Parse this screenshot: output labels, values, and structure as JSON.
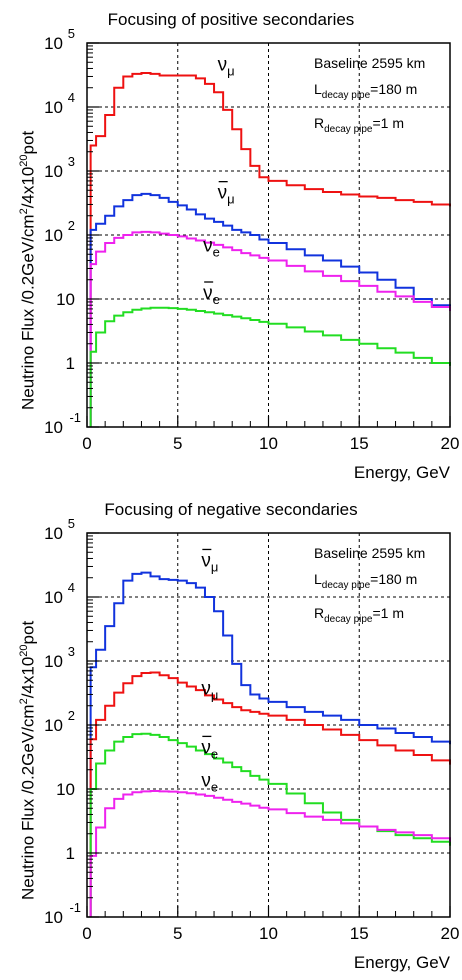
{
  "chart_data": [
    {
      "type": "line",
      "title": "Focusing of positive secondaries",
      "ylabel_prefix": "Neutrino Flux /0.2GeV/cm",
      "ylabel_sq": "2",
      "ylabel_mid": "/4x10",
      "ylabel_exp": "20",
      "ylabel_suffix": "pot",
      "xlabel": "Energy, GeV",
      "xlim": [
        0,
        20
      ],
      "ylim": [
        0.1,
        100000
      ],
      "yscale": "log",
      "grid": true,
      "x_ticks": [
        "0",
        "5",
        "10",
        "15",
        "20"
      ],
      "y_ticks": [
        {
          "base": "10",
          "exp": "-1"
        },
        {
          "base": "1",
          "exp": ""
        },
        {
          "base": "10",
          "exp": ""
        },
        {
          "base": "10",
          "exp": "2"
        },
        {
          "base": "10",
          "exp": "3"
        },
        {
          "base": "10",
          "exp": "4"
        },
        {
          "base": "10",
          "exp": "5"
        }
      ],
      "info": {
        "baseline": "Baseline 2595 km",
        "l_main": "L",
        "l_sub": "decay pipe",
        "l_val": "=180 m",
        "r_main": "R",
        "r_sub": "decay pipe",
        "r_val": "=1 m"
      },
      "x": [
        0.2,
        0.5,
        1,
        1.5,
        2,
        2.5,
        3,
        3.5,
        4,
        4.5,
        5,
        5.5,
        6,
        6.5,
        7,
        7.5,
        8,
        8.5,
        9,
        9.5,
        10,
        11,
        12,
        13,
        14,
        15,
        16,
        17,
        18,
        19,
        20
      ],
      "series": [
        {
          "label": "ν",
          "sub": "μ",
          "bar": false,
          "color": "#ee1111",
          "label_x": 7.2,
          "label_y": 37000,
          "values": [
            2500,
            3500,
            7500,
            20000,
            30000,
            33000,
            34000,
            33000,
            31000,
            31000,
            31000,
            31000,
            28000,
            23000,
            17000,
            9000,
            4500,
            2200,
            1200,
            800,
            700,
            600,
            520,
            470,
            430,
            400,
            380,
            350,
            330,
            300,
            280
          ]
        },
        {
          "label": "ν",
          "sub": "μ",
          "bar": true,
          "color": "#1133dd",
          "label_x": 7.2,
          "label_y": 370,
          "values": [
            120,
            150,
            200,
            280,
            350,
            420,
            440,
            420,
            380,
            330,
            290,
            250,
            210,
            180,
            160,
            140,
            120,
            110,
            100,
            85,
            75,
            60,
            48,
            40,
            32,
            26,
            20,
            15,
            10,
            8,
            7
          ]
        },
        {
          "label": "ν",
          "sub": "e",
          "bar": false,
          "color": "#ee22ee",
          "label_x": 6.4,
          "label_y": 55,
          "values": [
            35,
            55,
            75,
            90,
            100,
            110,
            112,
            110,
            105,
            100,
            95,
            88,
            82,
            76,
            70,
            64,
            58,
            52,
            48,
            44,
            40,
            33,
            27,
            23,
            19,
            16,
            13,
            11,
            9,
            7.5,
            6.5
          ]
        },
        {
          "label": "ν",
          "sub": "e",
          "bar": true,
          "color": "#22dd22",
          "label_x": 6.4,
          "label_y": 10,
          "values": [
            1.5,
            3,
            4.5,
            5.5,
            6.2,
            6.8,
            7.1,
            7.3,
            7.3,
            7.2,
            7,
            6.8,
            6.5,
            6.2,
            5.9,
            5.6,
            5.3,
            5,
            4.7,
            4.4,
            4.1,
            3.6,
            3.1,
            2.7,
            2.3,
            2,
            1.7,
            1.45,
            1.2,
            1,
            0.9
          ]
        }
      ]
    },
    {
      "type": "line",
      "title": "Focusing of negative secondaries",
      "ylabel_prefix": "Neutrino Flux /0.2GeV/cm",
      "ylabel_sq": "2",
      "ylabel_mid": "/4x10",
      "ylabel_exp": "20",
      "ylabel_suffix": "pot",
      "xlabel": "Energy, GeV",
      "xlim": [
        0,
        20
      ],
      "ylim": [
        0.1,
        100000
      ],
      "yscale": "log",
      "grid": true,
      "x_ticks": [
        "0",
        "5",
        "10",
        "15",
        "20"
      ],
      "y_ticks": [
        {
          "base": "10",
          "exp": "-1"
        },
        {
          "base": "1",
          "exp": ""
        },
        {
          "base": "10",
          "exp": ""
        },
        {
          "base": "10",
          "exp": "2"
        },
        {
          "base": "10",
          "exp": "3"
        },
        {
          "base": "10",
          "exp": "4"
        },
        {
          "base": "10",
          "exp": "5"
        }
      ],
      "info": {
        "baseline": "Baseline 2595 km",
        "l_main": "L",
        "l_sub": "decay pipe",
        "l_val": "=180 m",
        "r_main": "R",
        "r_sub": "decay pipe",
        "r_val": "=1 m"
      },
      "x": [
        0.2,
        0.5,
        1,
        1.5,
        2,
        2.5,
        3,
        3.5,
        4,
        4.5,
        5,
        5.5,
        6,
        6.5,
        7,
        7.5,
        8,
        8.5,
        9,
        9.5,
        10,
        11,
        12,
        13,
        14,
        15,
        16,
        17,
        18,
        19,
        20
      ],
      "series": [
        {
          "label": "ν",
          "sub": "μ",
          "bar": true,
          "color": "#1133dd",
          "label_x": 6.3,
          "label_y": 30000,
          "values": [
            800,
            1500,
            3500,
            8000,
            18000,
            23000,
            24000,
            21000,
            19000,
            18500,
            18000,
            16500,
            14000,
            10000,
            6000,
            2500,
            900,
            420,
            300,
            260,
            230,
            190,
            160,
            140,
            120,
            100,
            88,
            75,
            65,
            55,
            50
          ]
        },
        {
          "label": "ν",
          "sub": "μ",
          "bar": false,
          "color": "#ee1111",
          "label_x": 6.3,
          "label_y": 300,
          "values": [
            60,
            120,
            200,
            320,
            450,
            580,
            650,
            660,
            600,
            540,
            460,
            400,
            350,
            290,
            250,
            220,
            190,
            170,
            160,
            150,
            140,
            120,
            100,
            85,
            70,
            58,
            48,
            40,
            34,
            28,
            24
          ]
        },
        {
          "label": "ν",
          "sub": "e",
          "bar": true,
          "color": "#22dd22",
          "label_x": 6.3,
          "label_y": 36,
          "values": [
            10,
            25,
            40,
            55,
            65,
            72,
            73,
            70,
            65,
            58,
            52,
            46,
            40,
            35,
            30,
            26,
            22,
            19,
            16,
            14,
            12,
            8.5,
            6,
            4.3,
            3.3,
            2.6,
            2.2,
            1.9,
            1.7,
            1.5,
            1.3
          ]
        },
        {
          "label": "ν",
          "sub": "e",
          "bar": false,
          "color": "#ee22ee",
          "label_x": 6.3,
          "label_y": 11,
          "values": [
            0.9,
            2.5,
            5,
            7,
            8.2,
            8.9,
            9.2,
            9.3,
            9.2,
            9.1,
            8.9,
            8.6,
            8.2,
            7.8,
            7.3,
            6.8,
            6.3,
            5.9,
            5.5,
            5.1,
            4.8,
            4.2,
            3.7,
            3.3,
            2.9,
            2.6,
            2.3,
            2.1,
            1.9,
            1.7,
            1.5
          ]
        }
      ]
    }
  ]
}
